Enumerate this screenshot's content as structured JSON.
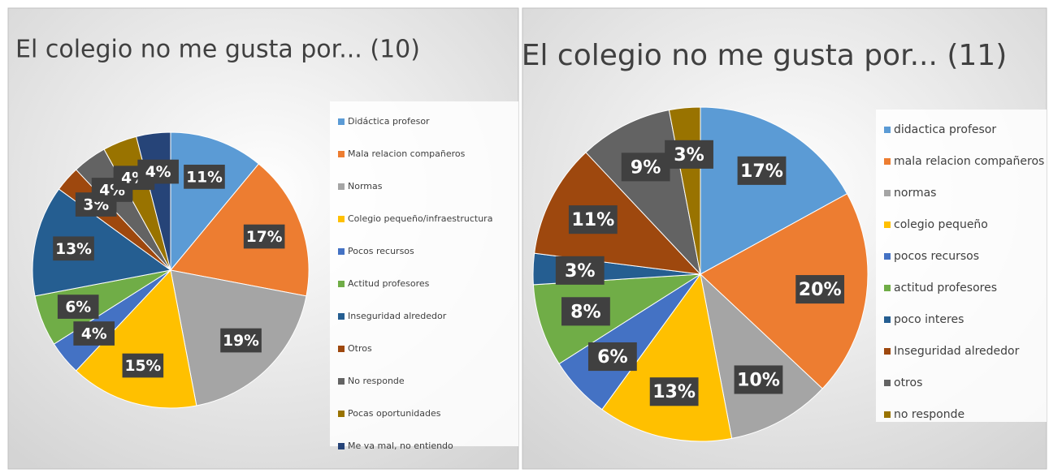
{
  "chart_data": [
    {
      "type": "pie",
      "title": "El colegio no me gusta por...  (10)",
      "categories": [
        "Didáctica profesor",
        "Mala relacion compañeros",
        "Normas",
        "Colegio pequeño/infraestructura",
        "Pocos recursos",
        "Actitud profesores",
        "Inseguridad alrededor",
        "Otros",
        "No responde",
        "Pocas oportunidades",
        "Me va mal, no entiendo"
      ],
      "values": [
        11,
        17,
        19,
        15,
        4,
        6,
        13,
        3,
        4,
        4,
        4
      ],
      "value_labels": [
        "11%",
        "17%",
        "19%",
        "15%",
        "4%",
        "6%",
        "13%",
        "3%",
        "4%",
        "4%",
        "4%"
      ],
      "colors": [
        "#5b9bd5",
        "#ed7d31",
        "#a5a5a5",
        "#ffc000",
        "#4472c4",
        "#70ad47",
        "#255e91",
        "#9e480e",
        "#636363",
        "#997300",
        "#264478"
      ],
      "legend": "right"
    },
    {
      "type": "pie",
      "title": "El colegio no me gusta por... (11)",
      "categories": [
        "didactica profesor",
        "mala relacion compañeros",
        "normas",
        "colegio pequeño",
        "pocos recursos",
        "actitud profesores",
        "poco interes",
        "Inseguridad alrededor",
        "otros",
        "no responde"
      ],
      "values": [
        17,
        20,
        10,
        13,
        6,
        8,
        3,
        11,
        9,
        3
      ],
      "value_labels": [
        "17%",
        "20%",
        "10%",
        "13%",
        "6%",
        "8%",
        "3%",
        "11%",
        "9%",
        "3%"
      ],
      "colors": [
        "#5b9bd5",
        "#ed7d31",
        "#a5a5a5",
        "#ffc000",
        "#4472c4",
        "#70ad47",
        "#255e91",
        "#9e480e",
        "#636363",
        "#997300"
      ],
      "legend": "right"
    }
  ]
}
